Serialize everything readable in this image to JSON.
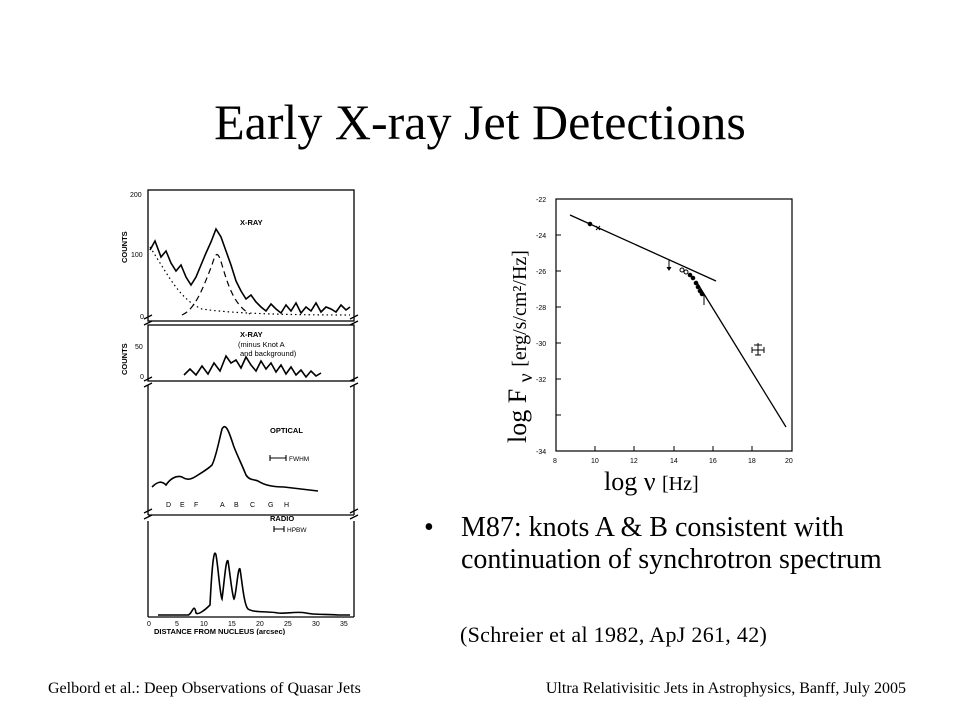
{
  "slide": {
    "title": "Early X-ray Jet Detections",
    "bullet": "M87: knots A & B consistent with continuation of synchrotron spectrum",
    "reference": "(Schreier et al 1982, ApJ 261, 42)",
    "footer_left": "Gelbord et al.: Deep Observations of Quasar Jets",
    "footer_right": "Ultra Relativisitic Jets in Astrophysics, Banff, July 2005"
  },
  "spectrum_plot": {
    "ylabel_main": "log F",
    "ylabel_sub": "ν",
    "ylabel_unit": "[erg/s/cm²/Hz]",
    "xlabel_main": "log ν",
    "xlabel_unit": "[Hz]",
    "x_ticks": [
      "8",
      "10",
      "12",
      "14",
      "16",
      "18",
      "20"
    ],
    "y_ticks": [
      "-22",
      "-24",
      "-26",
      "-28",
      "-30",
      "-32",
      "-34"
    ]
  },
  "profile_figure": {
    "xray_label": "X-RAY",
    "xray2_label": "X-RAY",
    "xray2_note_1": "(minus Knot A",
    "xray2_note_2": "and background)",
    "counts_label": "COUNTS",
    "counts_label_2": "COUNTS",
    "optical_label": "OPTICAL",
    "fwhm_label": "FWHM",
    "radio_label": "RADIO",
    "hpbw_label": "HPBW",
    "xaxis_label": "DISTANCE FROM NUCLEUS (arcsec)",
    "knot_letters": [
      "D",
      "E",
      "F",
      "A",
      "B",
      "C",
      "G",
      "H"
    ],
    "y_ticks_xray": [
      "200",
      "100",
      "0"
    ],
    "y_ticks_xray2": [
      "50",
      "0"
    ],
    "x_ticks": [
      "0",
      "5",
      "10",
      "15",
      "20",
      "25",
      "30",
      "35"
    ]
  }
}
